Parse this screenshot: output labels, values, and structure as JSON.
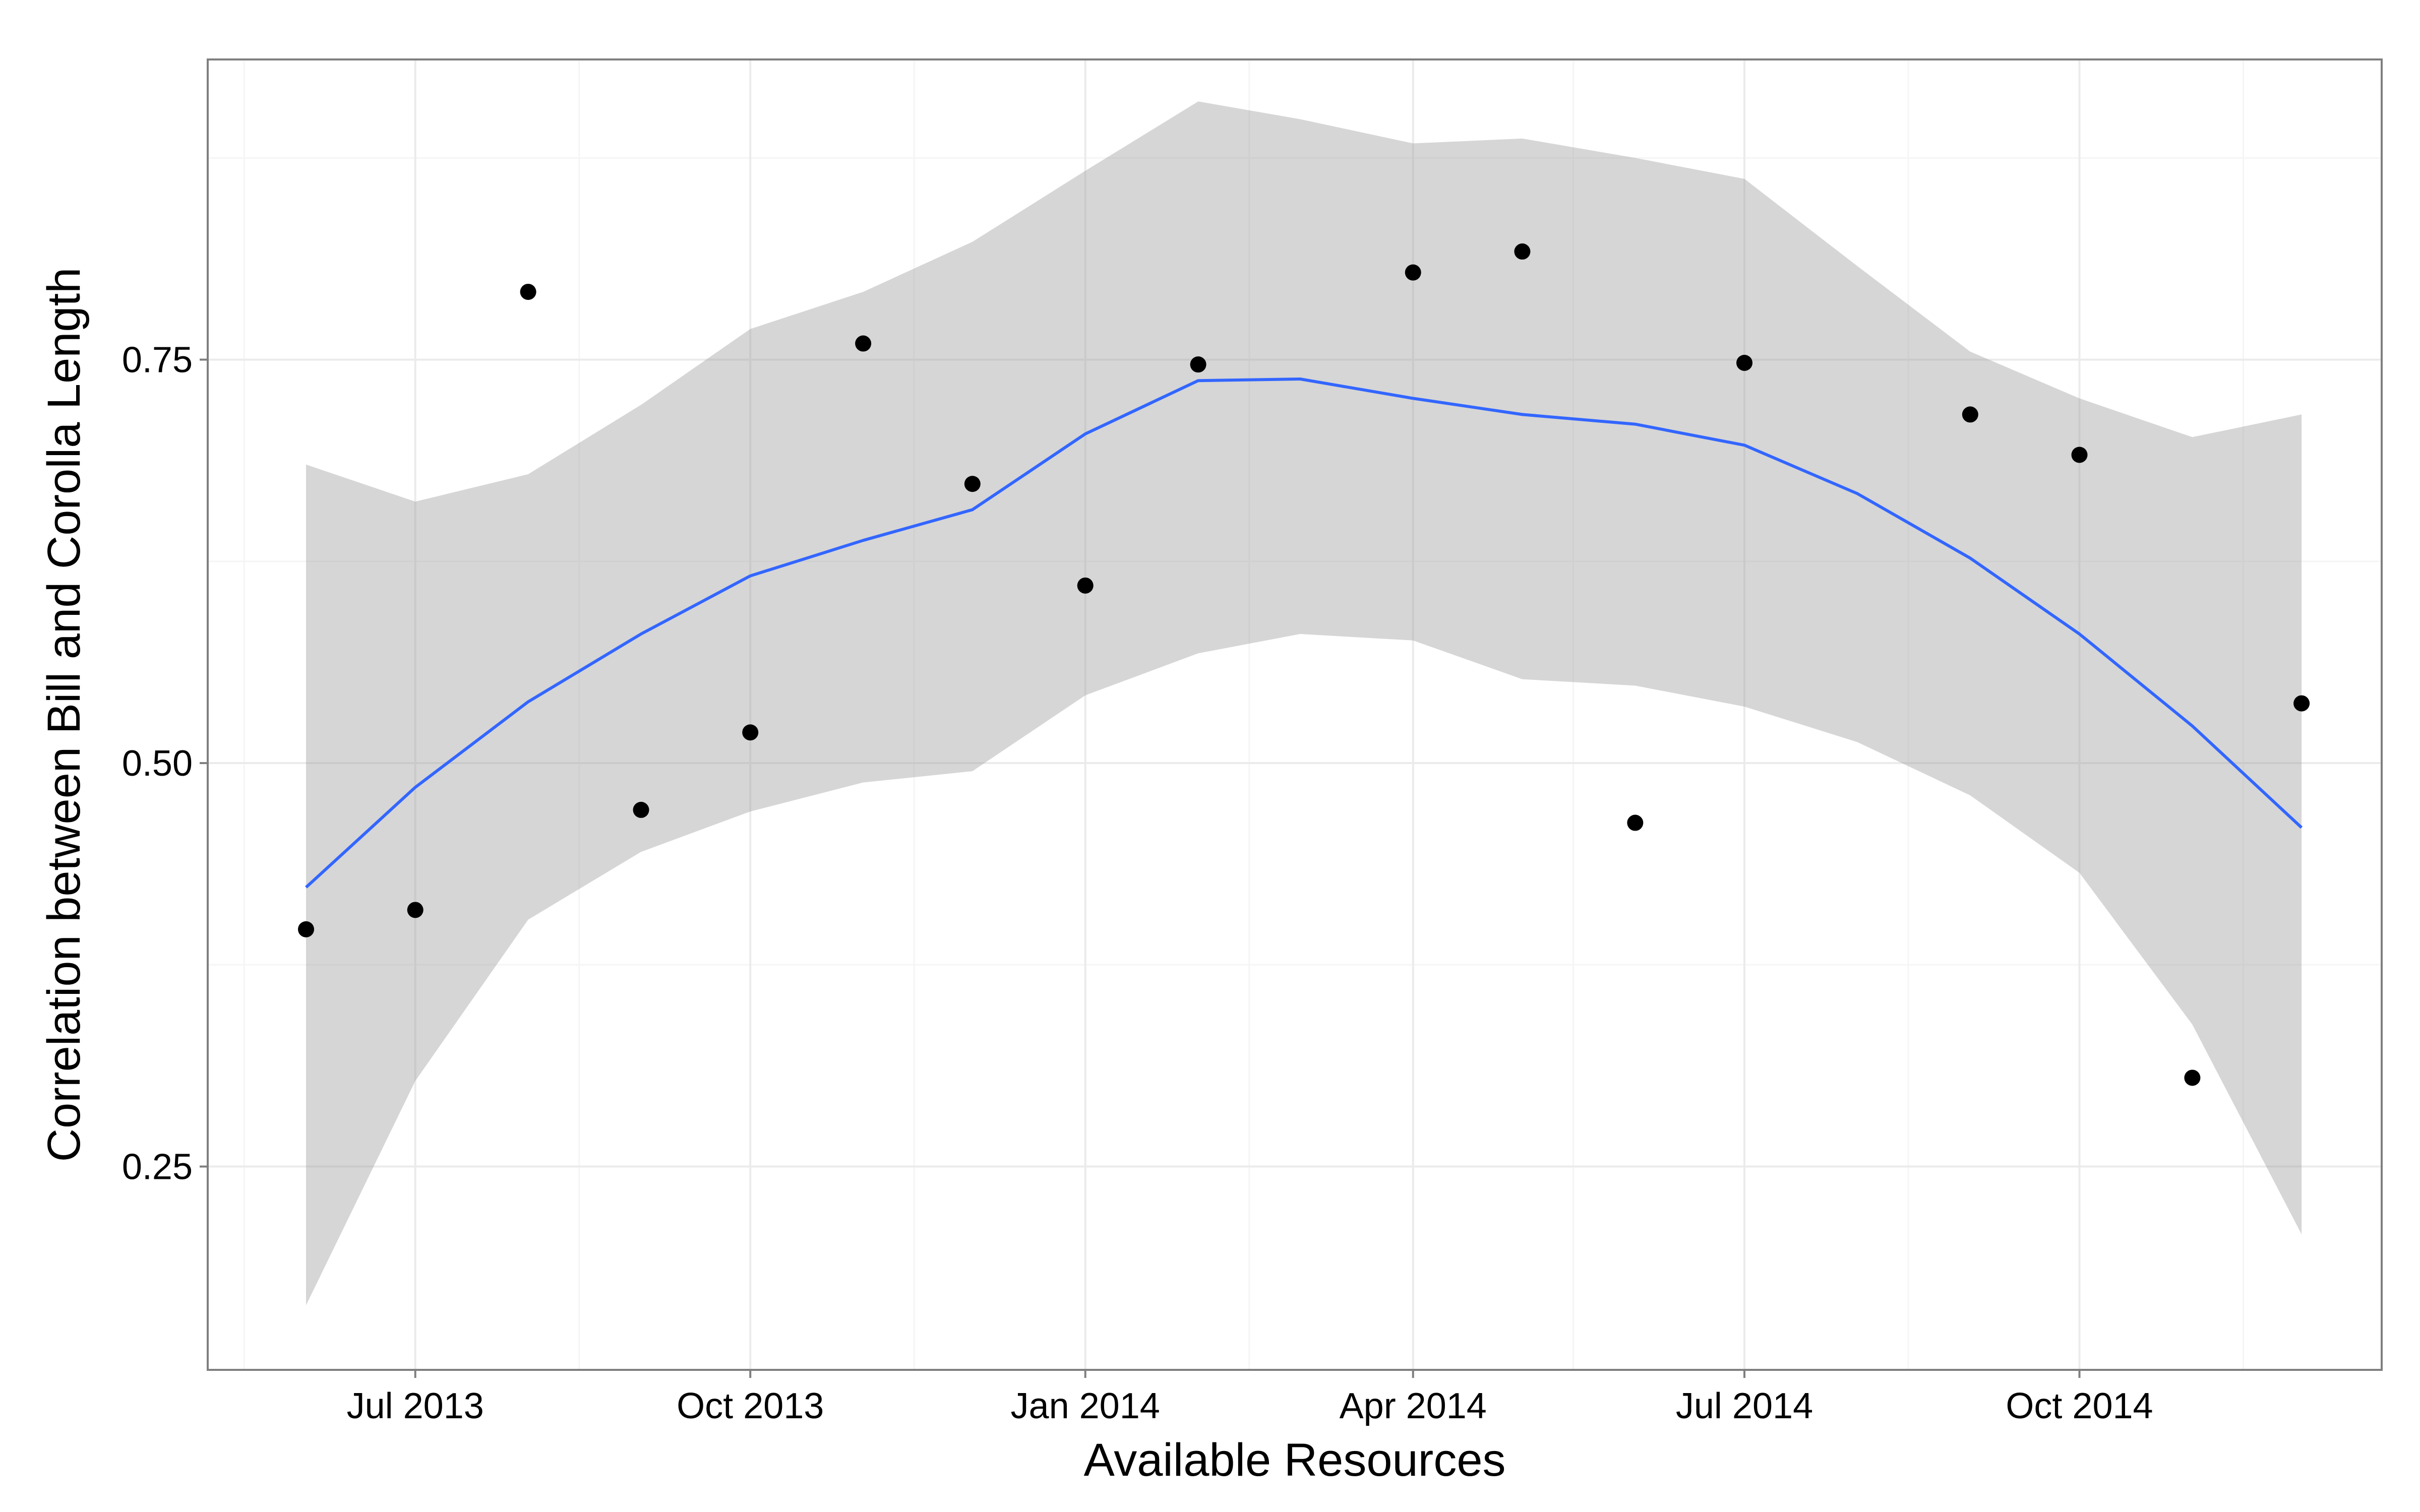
{
  "chart_data": {
    "type": "scatter",
    "title": "",
    "xlabel": "Available Resources",
    "ylabel": "Correlation between Bill and Corolla Length",
    "x_type": "date",
    "xlim": [
      "2013-05-05",
      "2014-12-23"
    ],
    "ylim": [
      0.124,
      0.936
    ],
    "x_ticks": [
      {
        "date": "2013-07-01",
        "label": "Jul 2013"
      },
      {
        "date": "2013-10-01",
        "label": "Oct 2013"
      },
      {
        "date": "2014-01-01",
        "label": "Jan 2014"
      },
      {
        "date": "2014-04-01",
        "label": "Apr 2014"
      },
      {
        "date": "2014-07-01",
        "label": "Jul 2014"
      },
      {
        "date": "2014-10-01",
        "label": "Oct 2014"
      }
    ],
    "x_minor_ticks": [
      "2013-05-15",
      "2013-08-15",
      "2013-11-15",
      "2014-02-15",
      "2014-05-15",
      "2014-08-15",
      "2014-11-15"
    ],
    "y_ticks": [
      {
        "value": 0.25,
        "label": "0.25"
      },
      {
        "value": 0.5,
        "label": "0.50"
      },
      {
        "value": 0.75,
        "label": "0.75"
      }
    ],
    "y_minor_ticks": [
      0.375,
      0.625,
      0.875
    ],
    "grid": true,
    "points": [
      {
        "x": "2013-06-01",
        "y": 0.397
      },
      {
        "x": "2013-07-01",
        "y": 0.409
      },
      {
        "x": "2013-08-01",
        "y": 0.792
      },
      {
        "x": "2013-09-01",
        "y": 0.471
      },
      {
        "x": "2013-10-01",
        "y": 0.519
      },
      {
        "x": "2013-11-01",
        "y": 0.76
      },
      {
        "x": "2013-12-01",
        "y": 0.673
      },
      {
        "x": "2014-01-01",
        "y": 0.61
      },
      {
        "x": "2014-02-01",
        "y": 0.747
      },
      {
        "x": "2014-04-01",
        "y": 0.804
      },
      {
        "x": "2014-05-01",
        "y": 0.817
      },
      {
        "x": "2014-06-01",
        "y": 0.463
      },
      {
        "x": "2014-07-01",
        "y": 0.748
      },
      {
        "x": "2014-09-01",
        "y": 0.716
      },
      {
        "x": "2014-10-01",
        "y": 0.691
      },
      {
        "x": "2014-11-01",
        "y": 0.305
      },
      {
        "x": "2014-12-01",
        "y": 0.537
      }
    ],
    "smooth": {
      "method": "loess",
      "color": "#3366FF",
      "band_color": "#999999",
      "band_alpha": 0.4,
      "x": [
        "2013-06-01",
        "2013-07-01",
        "2013-08-01",
        "2013-09-01",
        "2013-10-01",
        "2013-11-01",
        "2013-12-01",
        "2014-01-01",
        "2014-02-01",
        "2014-03-01",
        "2014-04-01",
        "2014-05-01",
        "2014-06-01",
        "2014-07-01",
        "2014-08-01",
        "2014-09-01",
        "2014-10-01",
        "2014-11-01",
        "2014-12-01"
      ],
      "y": [
        0.423,
        0.485,
        0.538,
        0.58,
        0.616,
        0.638,
        0.657,
        0.704,
        0.737,
        0.738,
        0.726,
        0.716,
        0.71,
        0.697,
        0.667,
        0.627,
        0.58,
        0.523,
        0.46
      ],
      "lower": [
        0.164,
        0.303,
        0.403,
        0.445,
        0.47,
        0.488,
        0.495,
        0.542,
        0.568,
        0.58,
        0.576,
        0.552,
        0.548,
        0.535,
        0.513,
        0.48,
        0.432,
        0.338,
        0.208
      ],
      "upper": [
        0.685,
        0.662,
        0.679,
        0.722,
        0.769,
        0.792,
        0.823,
        0.867,
        0.91,
        0.899,
        0.884,
        0.887,
        0.875,
        0.862,
        0.808,
        0.755,
        0.726,
        0.702,
        0.716
      ]
    },
    "colors": {
      "panel_border": "#7f7f7f",
      "grid_major": "#ebebeb",
      "grid_minor": "#f5f5f5",
      "point": "#000000"
    }
  }
}
